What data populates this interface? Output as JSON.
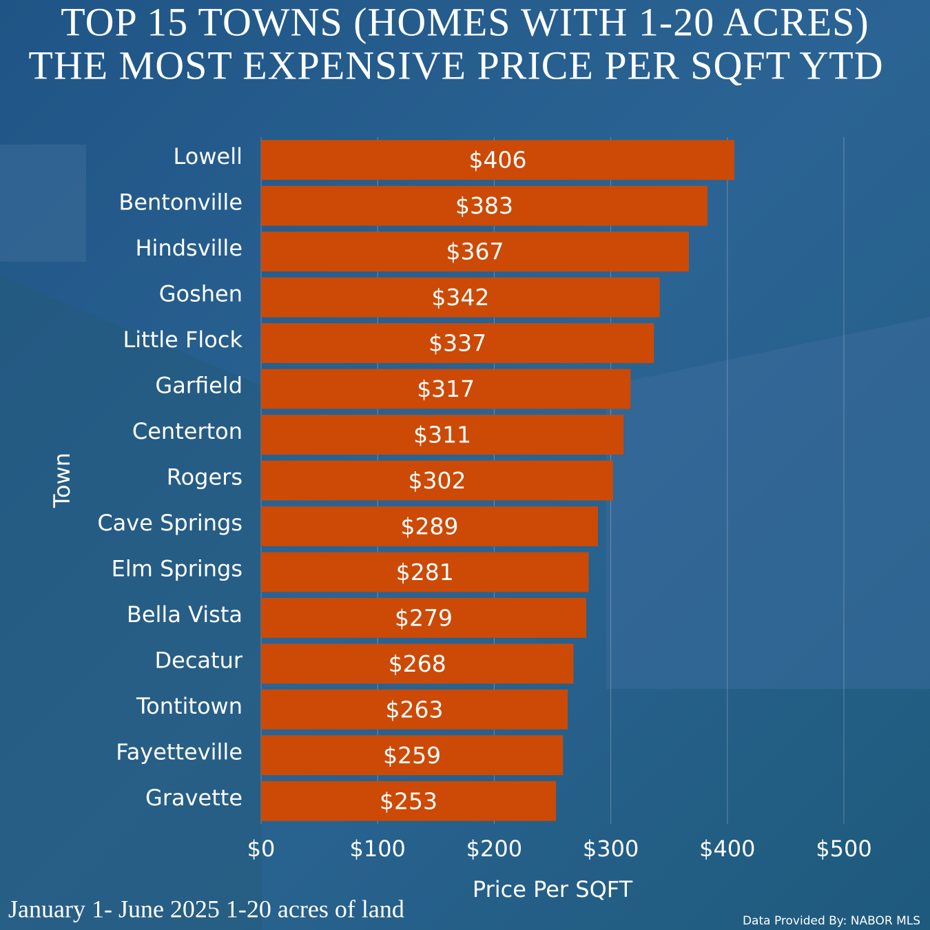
{
  "chart_data": {
    "type": "bar",
    "orientation": "horizontal",
    "title_lines": [
      "TOP 15 TOWNS (HOMES WITH 1-20 ACRES)",
      "THE MOST EXPENSIVE PRICE PER SQFT YTD"
    ],
    "categories": [
      "Lowell",
      "Bentonville",
      "Hindsville",
      "Goshen",
      "Little Flock",
      "Garfield",
      "Centerton",
      "Rogers",
      "Cave Springs",
      "Elm Springs",
      "Bella Vista",
      "Decatur",
      "Tontitown",
      "Fayetteville",
      "Gravette"
    ],
    "values": [
      406,
      383,
      367,
      342,
      337,
      317,
      311,
      302,
      289,
      281,
      279,
      268,
      263,
      259,
      253
    ],
    "value_labels": [
      "$406",
      "$383",
      "$367",
      "$342",
      "$337",
      "$317",
      "$311",
      "$302",
      "$289",
      "$281",
      "$279",
      "$268",
      "$263",
      "$259",
      "$253"
    ],
    "color": "#cc4a06",
    "xlim": [
      0,
      500
    ],
    "xticks": [
      {
        "value": 0,
        "label": "$0"
      },
      {
        "value": 100,
        "label": "$100"
      },
      {
        "value": 200,
        "label": "$200"
      },
      {
        "value": 300,
        "label": "$300"
      },
      {
        "value": 400,
        "label": "$400"
      },
      {
        "value": 500,
        "label": "$500"
      }
    ],
    "grid": true,
    "x_label": "Price Per SQFT",
    "y_label": "Town",
    "footnote": "January 1- June 2025 1-20 acres of land",
    "source": "Data Provided By: NABOR MLS"
  }
}
